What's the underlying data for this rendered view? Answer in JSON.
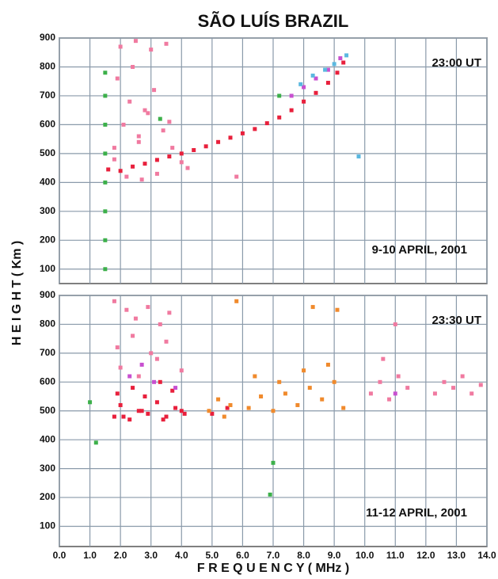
{
  "title": "SÃO LUÍS BRAZIL",
  "ylabel": "H E I G H T ( Km )",
  "chart_data": [
    {
      "type": "scatter",
      "annotations": [
        "23:00 UT",
        "9-10 APRIL, 2001"
      ],
      "xlim": [
        0,
        14
      ],
      "ylim": [
        50,
        900
      ],
      "grid": true,
      "xticks": [
        0,
        1,
        2,
        3,
        4,
        5,
        6,
        7,
        8,
        9,
        10,
        11,
        12,
        13,
        14
      ],
      "yticks": [
        100,
        200,
        300,
        400,
        500,
        600,
        700,
        800,
        900
      ],
      "series": [
        {
          "color": "#e8203c",
          "x": [
            1.6,
            2.0,
            2.4,
            2.8,
            3.2,
            3.6,
            4.0,
            4.4,
            4.8,
            5.2,
            5.6,
            6.0,
            6.4,
            6.8,
            7.2,
            7.6,
            8.0,
            8.4,
            8.8,
            9.1,
            9.3
          ],
          "y": [
            445,
            440,
            455,
            465,
            478,
            490,
            500,
            512,
            525,
            540,
            555,
            570,
            585,
            605,
            625,
            650,
            680,
            710,
            745,
            780,
            815
          ]
        },
        {
          "color": "#f07aa0",
          "x": [
            1.8,
            2.1,
            2.3,
            2.6,
            2.9,
            3.1,
            3.4,
            3.7,
            4.0,
            2.0,
            2.5,
            3.0,
            3.5,
            1.9,
            2.4,
            2.8,
            2.2,
            2.7,
            3.2,
            1.8,
            2.6,
            3.6,
            4.2,
            5.8
          ],
          "y": [
            520,
            600,
            680,
            560,
            640,
            720,
            580,
            520,
            470,
            870,
            890,
            860,
            880,
            760,
            800,
            650,
            420,
            410,
            430,
            480,
            540,
            610,
            450,
            420
          ]
        },
        {
          "color": "#3cb04a",
          "x": [
            1.5,
            1.5,
            1.5,
            1.5,
            1.5,
            1.5,
            1.5,
            1.5,
            3.3,
            7.2
          ],
          "y": [
            100,
            200,
            300,
            400,
            500,
            600,
            700,
            780,
            620,
            700
          ]
        },
        {
          "color": "#c850d0",
          "x": [
            7.6,
            8.0,
            8.4,
            8.8,
            9.2
          ],
          "y": [
            700,
            730,
            760,
            790,
            830
          ]
        },
        {
          "color": "#5ab8e0",
          "x": [
            7.9,
            8.3,
            8.7,
            9.0,
            9.4,
            9.8
          ],
          "y": [
            740,
            770,
            790,
            810,
            840,
            490
          ]
        }
      ]
    },
    {
      "type": "scatter",
      "annotations": [
        "23:30 UT",
        "11-12 APRIL, 2001"
      ],
      "xlabel": "F R E Q U E N C Y ( MHz )",
      "xlim": [
        0,
        14
      ],
      "ylim": [
        30,
        900
      ],
      "grid": true,
      "xticks": [
        {
          "value": 0,
          "label": "0.0"
        },
        {
          "value": 1,
          "label": "1.0"
        },
        {
          "value": 2,
          "label": "2.0"
        },
        {
          "value": 3,
          "label": "3.0"
        },
        {
          "value": 4,
          "label": "4.0"
        },
        {
          "value": 5,
          "label": "5.0"
        },
        {
          "value": 6,
          "label": "6.0"
        },
        {
          "value": 7,
          "label": "7.0"
        },
        {
          "value": 8,
          "label": "8.0"
        },
        {
          "value": 9,
          "label": "9.0"
        },
        {
          "value": 10,
          "label": "10.0"
        },
        {
          "value": 11,
          "label": "11.0"
        },
        {
          "value": 12,
          "label": "12.0"
        },
        {
          "value": 13,
          "label": "13.0"
        },
        {
          "value": 14,
          "label": "14.0"
        }
      ],
      "yticks": [
        100,
        200,
        300,
        400,
        500,
        600,
        700,
        800,
        900
      ],
      "series": [
        {
          "color": "#e8203c",
          "x": [
            1.8,
            2.0,
            2.3,
            2.6,
            2.9,
            3.2,
            3.5,
            3.8,
            4.1,
            1.9,
            2.4,
            2.8,
            3.3,
            3.7,
            2.1,
            2.7,
            3.4,
            4.0,
            5.0,
            5.5
          ],
          "y": [
            480,
            520,
            470,
            500,
            490,
            530,
            480,
            510,
            490,
            560,
            580,
            550,
            600,
            570,
            480,
            500,
            470,
            500,
            490,
            510
          ]
        },
        {
          "color": "#f07aa0",
          "x": [
            1.8,
            2.2,
            2.5,
            2.9,
            3.3,
            3.6,
            1.9,
            2.4,
            3.0,
            3.5,
            2.0,
            2.6,
            3.2,
            4.0,
            10.2,
            10.5,
            10.8,
            11.1,
            11.4,
            12.3,
            12.6,
            12.9,
            13.2,
            13.5,
            13.8,
            10.6,
            11.0
          ],
          "y": [
            880,
            850,
            820,
            860,
            800,
            840,
            720,
            760,
            700,
            740,
            650,
            620,
            680,
            640,
            560,
            600,
            540,
            620,
            580,
            560,
            600,
            580,
            620,
            560,
            590,
            680,
            800
          ]
        },
        {
          "color": "#f08a2c",
          "x": [
            4.9,
            5.2,
            5.6,
            6.2,
            6.6,
            7.0,
            7.4,
            7.8,
            8.2,
            8.6,
            9.0,
            9.3,
            6.4,
            7.2,
            8.0,
            8.8,
            5.4,
            8.3,
            9.1,
            5.8
          ],
          "y": [
            500,
            540,
            520,
            510,
            550,
            500,
            560,
            520,
            580,
            540,
            600,
            510,
            620,
            600,
            640,
            660,
            480,
            860,
            850,
            880
          ]
        },
        {
          "color": "#c850d0",
          "x": [
            2.3,
            3.1,
            3.8,
            2.7,
            11.0
          ],
          "y": [
            620,
            600,
            580,
            660,
            560
          ]
        },
        {
          "color": "#3cb04a",
          "x": [
            1.0,
            1.2,
            7.0,
            6.9
          ],
          "y": [
            530,
            390,
            320,
            210
          ]
        }
      ]
    }
  ]
}
